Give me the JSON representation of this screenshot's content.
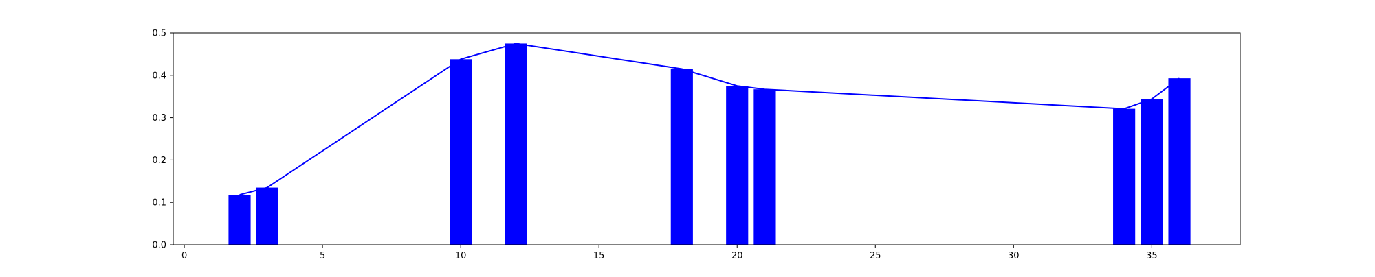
{
  "chart_data": {
    "type": "bar",
    "title": "",
    "xlabel": "",
    "ylabel": "",
    "xlim": [
      -0.4,
      38.2
    ],
    "ylim": [
      0,
      0.5
    ],
    "xticks": [
      0,
      5,
      10,
      15,
      20,
      25,
      30,
      35
    ],
    "yticks": [
      0.0,
      0.1,
      0.2,
      0.3,
      0.4,
      0.5
    ],
    "xtick_labels": [
      "0",
      "5",
      "10",
      "15",
      "20",
      "25",
      "30",
      "35"
    ],
    "ytick_labels": [
      "0.0",
      "0.1",
      "0.2",
      "0.3",
      "0.4",
      "0.5"
    ],
    "grid": false,
    "bar_width": 0.8,
    "colors": {
      "bar": "#0000ff",
      "line": "#0000ff",
      "axis": "#000000",
      "background": "#ffffff"
    },
    "x": [
      2,
      3,
      10,
      12,
      18,
      20,
      21,
      34,
      35,
      36
    ],
    "values": [
      0.118,
      0.135,
      0.438,
      0.475,
      0.415,
      0.375,
      0.367,
      0.321,
      0.344,
      0.393
    ],
    "overlay_line": {
      "type": "line",
      "x": [
        2,
        3,
        10,
        12,
        18,
        20,
        21,
        34,
        35,
        36
      ],
      "values": [
        0.118,
        0.135,
        0.438,
        0.475,
        0.415,
        0.375,
        0.367,
        0.321,
        0.344,
        0.393
      ]
    }
  }
}
